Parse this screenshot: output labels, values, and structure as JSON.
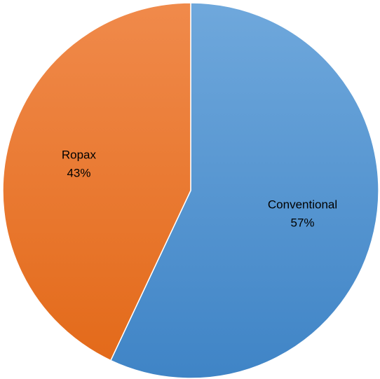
{
  "chart_data": {
    "type": "pie",
    "title": "",
    "start_angle_deg": 0,
    "direction": "clockwise",
    "legend": "none",
    "slices": [
      {
        "label": "Conventional",
        "value": 57,
        "value_label": "57%",
        "color_top": "#6fa8dc",
        "color_bottom": "#3f84c6"
      },
      {
        "label": "Ropax",
        "value": 43,
        "value_label": "43%",
        "color_top": "#f08a4b",
        "color_bottom": "#e36a1a"
      }
    ]
  }
}
